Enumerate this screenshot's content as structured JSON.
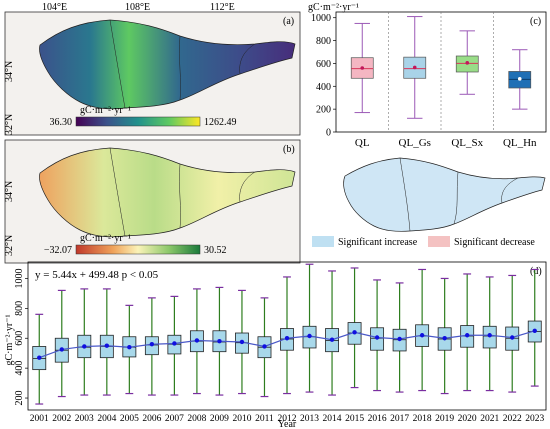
{
  "colors": {
    "ql": "#f4b6c2",
    "ql_gs": "#a9d3e8",
    "ql_sx": "#99dd88",
    "ql_hn": "#1f6fb5",
    "whisker_top": "#9b59b6",
    "median": "#d7375a",
    "mean": "#1010e0",
    "d_box": "#a8d8ea",
    "d_whisker": "#2e7d1f",
    "d_cap": "#7a2ea0",
    "d_line": "#4a58c8",
    "sig_increase": "#bfe0f2",
    "sig_decrease": "#f4c2c2"
  },
  "panel_a": {
    "label": "(a)",
    "lon_ticks": [
      "104°E",
      "108°E",
      "112°E"
    ],
    "lat_ticks": [
      "34°N",
      "32°N"
    ],
    "colorbar_title": "gC·m⁻²·yr⁻¹",
    "colorbar_min": "36.30",
    "colorbar_max": "1262.49"
  },
  "panel_b": {
    "label": "(b)",
    "lat_ticks": [
      "34°N",
      "32°N"
    ],
    "colorbar_title": "gC·m⁻²·yr⁻¹",
    "colorbar_min": "−32.07",
    "colorbar_max": "30.52"
  },
  "legend_map": {
    "increase": "Significant increase",
    "decrease": "Significant decrease"
  },
  "chart_data": [
    {
      "type": "box",
      "panel": "(c)",
      "ylabel": "gC·m⁻²·yr⁻¹",
      "ylim": [
        0,
        1050
      ],
      "yticks": [
        0,
        200,
        400,
        600,
        800,
        1000
      ],
      "categories": [
        "QL",
        "QL_Gs",
        "QL_Sx",
        "QL_Hn"
      ],
      "boxes": [
        {
          "min": 170,
          "q1": 470,
          "median": 555,
          "q3": 650,
          "max": 950,
          "mean": 560
        },
        {
          "min": 120,
          "q1": 470,
          "median": 555,
          "q3": 655,
          "max": 1010,
          "mean": 565
        },
        {
          "min": 330,
          "q1": 525,
          "median": 600,
          "q3": 665,
          "max": 885,
          "mean": 605
        },
        {
          "min": 200,
          "q1": 385,
          "median": 460,
          "q3": 530,
          "max": 720,
          "mean": 465
        }
      ]
    },
    {
      "type": "box",
      "panel": "(d)",
      "xlabel": "Year",
      "ylabel": "gC·m⁻²·yr⁻¹",
      "equation": "y = 5.44x + 499.48   p < 0.05",
      "ylim": [
        120,
        1110
      ],
      "yticks": [
        200,
        400,
        600,
        800,
        1000
      ],
      "categories": [
        "2001",
        "2002",
        "2003",
        "2004",
        "2005",
        "2006",
        "2007",
        "2008",
        "2009",
        "2010",
        "2011",
        "2012",
        "2013",
        "2014",
        "2015",
        "2016",
        "2017",
        "2018",
        "2019",
        "2020",
        "2021",
        "2022",
        "2023"
      ],
      "boxes": [
        {
          "min": 160,
          "q1": 390,
          "median": 465,
          "q3": 545,
          "max": 760,
          "mean": 470
        },
        {
          "min": 210,
          "q1": 440,
          "median": 520,
          "q3": 600,
          "max": 920,
          "mean": 525
        },
        {
          "min": 220,
          "q1": 470,
          "median": 540,
          "q3": 620,
          "max": 930,
          "mean": 545
        },
        {
          "min": 220,
          "q1": 470,
          "median": 545,
          "q3": 620,
          "max": 930,
          "mean": 550
        },
        {
          "min": 230,
          "q1": 475,
          "median": 540,
          "q3": 610,
          "max": 820,
          "mean": 540
        },
        {
          "min": 220,
          "q1": 490,
          "median": 555,
          "q3": 610,
          "max": 870,
          "mean": 560
        },
        {
          "min": 220,
          "q1": 495,
          "median": 560,
          "q3": 620,
          "max": 880,
          "mean": 565
        },
        {
          "min": 230,
          "q1": 510,
          "median": 580,
          "q3": 650,
          "max": 930,
          "mean": 585
        },
        {
          "min": 220,
          "q1": 510,
          "median": 575,
          "q3": 650,
          "max": 940,
          "mean": 580
        },
        {
          "min": 230,
          "q1": 500,
          "median": 570,
          "q3": 635,
          "max": 920,
          "mean": 575
        },
        {
          "min": 210,
          "q1": 470,
          "median": 540,
          "q3": 610,
          "max": 870,
          "mean": 545
        },
        {
          "min": 230,
          "q1": 520,
          "median": 595,
          "q3": 665,
          "max": 1010,
          "mean": 600
        },
        {
          "min": 240,
          "q1": 535,
          "median": 610,
          "q3": 680,
          "max": 1095,
          "mean": 615
        },
        {
          "min": 220,
          "q1": 510,
          "median": 585,
          "q3": 665,
          "max": 1050,
          "mean": 590
        },
        {
          "min": 270,
          "q1": 560,
          "median": 635,
          "q3": 705,
          "max": 1070,
          "mean": 640
        },
        {
          "min": 250,
          "q1": 520,
          "median": 600,
          "q3": 670,
          "max": 990,
          "mean": 605
        },
        {
          "min": 240,
          "q1": 515,
          "median": 590,
          "q3": 660,
          "max": 970,
          "mean": 595
        },
        {
          "min": 250,
          "q1": 545,
          "median": 615,
          "q3": 690,
          "max": 1060,
          "mean": 620
        },
        {
          "min": 230,
          "q1": 520,
          "median": 595,
          "q3": 670,
          "max": 1000,
          "mean": 600
        },
        {
          "min": 250,
          "q1": 540,
          "median": 615,
          "q3": 685,
          "max": 1030,
          "mean": 620
        },
        {
          "min": 250,
          "q1": 535,
          "median": 615,
          "q3": 680,
          "max": 1010,
          "mean": 620
        },
        {
          "min": 240,
          "q1": 520,
          "median": 600,
          "q3": 675,
          "max": 1020,
          "mean": 605
        },
        {
          "min": 280,
          "q1": 575,
          "median": 645,
          "q3": 715,
          "max": 1060,
          "mean": 650
        }
      ]
    }
  ]
}
